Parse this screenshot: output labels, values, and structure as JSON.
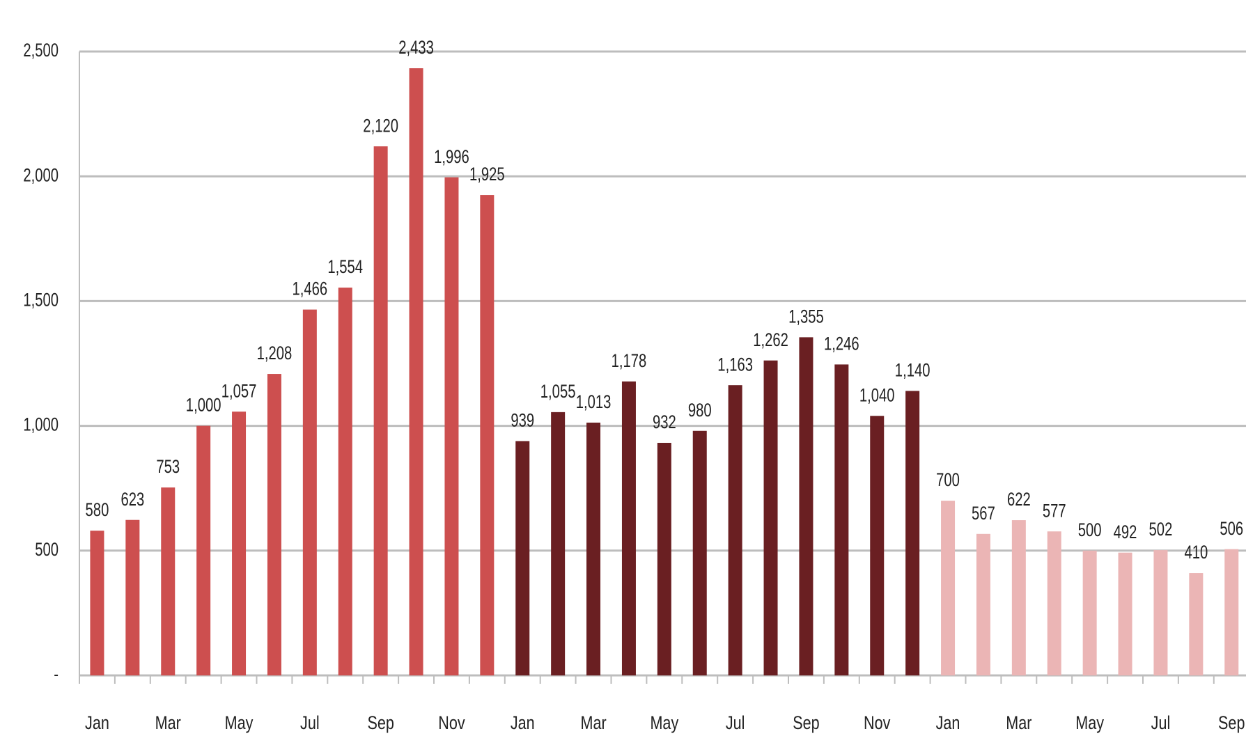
{
  "chart_data": {
    "type": "bar",
    "categories": [
      "Jan",
      null,
      "Mar",
      null,
      "May",
      null,
      "Jul",
      null,
      "Sep",
      null,
      "Nov",
      null,
      "Jan",
      null,
      "Mar",
      null,
      "May",
      null,
      "Jul",
      null,
      "Sep",
      null,
      "Nov",
      null,
      "Jan",
      null,
      "Mar",
      null,
      "May",
      null,
      "Jul",
      null,
      "Sep"
    ],
    "values": [
      580,
      623,
      753,
      1000,
      1057,
      1208,
      1466,
      1554,
      2120,
      2433,
      1996,
      1925,
      939,
      1055,
      1013,
      1178,
      932,
      980,
      1163,
      1262,
      1355,
      1246,
      1040,
      1140,
      700,
      567,
      622,
      577,
      500,
      492,
      502,
      410,
      506
    ],
    "value_labels": [
      "580",
      "623",
      "753",
      "1,000",
      "1,057",
      "1,208",
      "1,466",
      "1,554",
      "2,120",
      "2,433",
      "1,996",
      "1,925",
      "939",
      "1,055",
      "1,013",
      "1,178",
      "932",
      "980",
      "1,163",
      "1,262",
      "1,355",
      "1,246",
      "1,040",
      "1,140",
      "700",
      "567",
      "622",
      "577",
      "500",
      "492",
      "502",
      "410",
      "506"
    ],
    "colors": [
      "#cd4f4f",
      "#cd4f4f",
      "#cd4f4f",
      "#cd4f4f",
      "#cd4f4f",
      "#cd4f4f",
      "#cd4f4f",
      "#cd4f4f",
      "#cd4f4f",
      "#cd4f4f",
      "#cd4f4f",
      "#cd4f4f",
      "#6a1f22",
      "#6a1f22",
      "#6a1f22",
      "#6a1f22",
      "#6a1f22",
      "#6a1f22",
      "#6a1f22",
      "#6a1f22",
      "#6a1f22",
      "#6a1f22",
      "#6a1f22",
      "#6a1f22",
      "#ebb5b5",
      "#ebb5b5",
      "#ebb5b5",
      "#ebb5b5",
      "#ebb5b5",
      "#ebb5b5",
      "#ebb5b5",
      "#ebb5b5",
      "#ebb5b5"
    ],
    "ylim": [
      0,
      2500
    ],
    "yticks": [
      {
        "value": 0,
        "label": "-"
      },
      500,
      {
        "value": 1000,
        "label": "1,000"
      },
      {
        "value": 1500,
        "label": "1,500"
      },
      {
        "value": 2000,
        "label": "2,000"
      },
      {
        "value": 2500,
        "label": "2,500"
      }
    ],
    "grid": true
  }
}
